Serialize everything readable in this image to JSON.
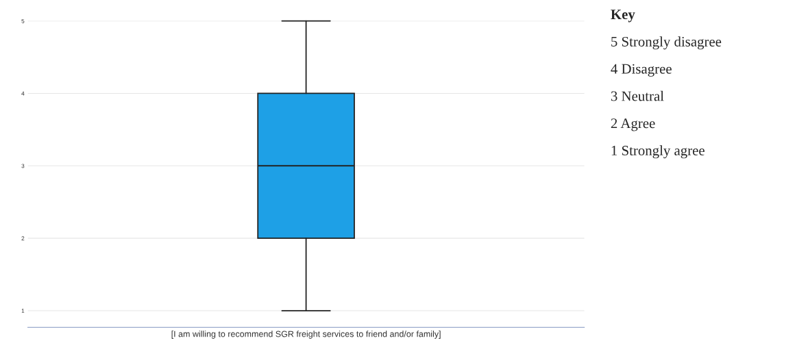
{
  "chart_data": {
    "type": "box",
    "categories": [
      "[I am willing to recommend SGR freight services to friend and/or family]"
    ],
    "boxes": [
      {
        "low": 1,
        "q1": 2,
        "median": 3,
        "q3": 4,
        "high": 5
      }
    ],
    "color": "#1ea0e6",
    "ylim": [
      0.77,
      5
    ],
    "yticks": [
      1,
      2,
      3,
      4,
      5
    ],
    "grid": "y",
    "annotations": [
      "Key",
      "5 Strongly disagree",
      "4 Disagree",
      "3 Neutral",
      "2 Agree",
      "1 Strongly agree"
    ]
  }
}
